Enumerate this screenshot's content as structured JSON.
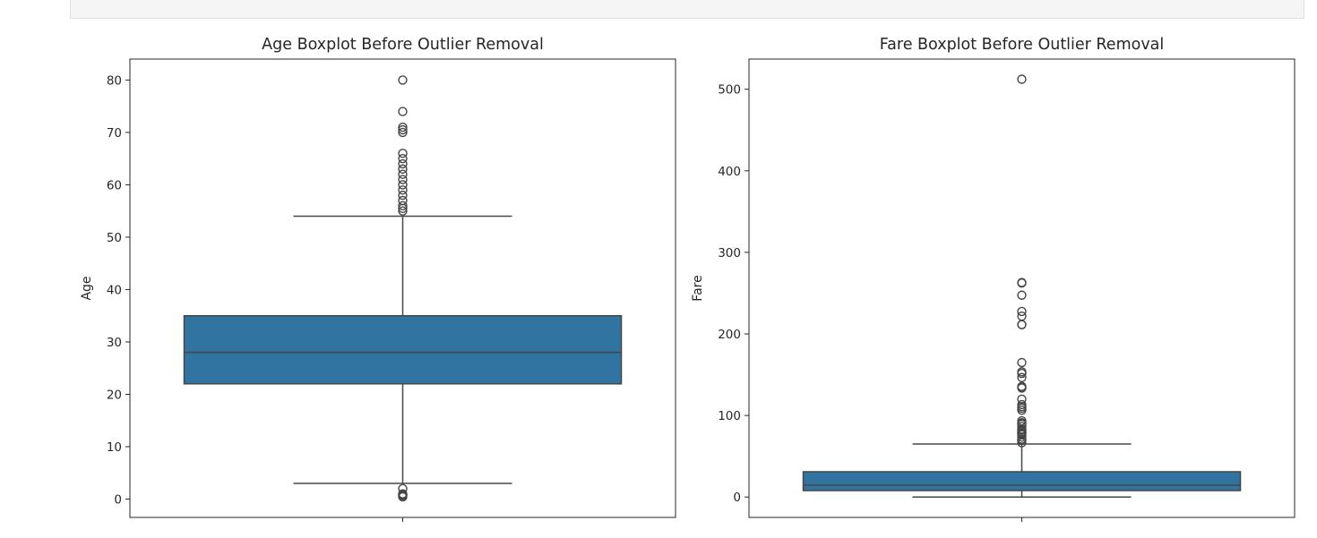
{
  "chart_data": [
    {
      "type": "boxplot",
      "title": "Age Boxplot Before Outlier Removal",
      "xlabel": "",
      "ylabel": "Age",
      "ylim": [
        -3.5,
        84
      ],
      "yticks": [
        0,
        10,
        20,
        30,
        40,
        50,
        60,
        70,
        80
      ],
      "box_color": "#3274a1",
      "line_color": "#464646",
      "grid": false,
      "box": {
        "whisker_low": 3,
        "q1": 22,
        "median": 28,
        "q3": 35,
        "whisker_high": 54
      },
      "outliers": [
        0.42,
        0.67,
        0.75,
        0.83,
        0.92,
        1,
        2,
        55,
        55.5,
        56,
        57,
        58,
        59,
        60,
        61,
        62,
        63,
        64,
        65,
        66,
        70,
        70.5,
        71,
        74,
        80
      ]
    },
    {
      "type": "boxplot",
      "title": "Fare Boxplot Before Outlier Removal",
      "xlabel": "",
      "ylabel": "Fare",
      "ylim": [
        -25,
        537
      ],
      "yticks": [
        0,
        100,
        200,
        300,
        400,
        500
      ],
      "box_color": "#3274a1",
      "line_color": "#464646",
      "grid": false,
      "box": {
        "whisker_low": 0,
        "q1": 7.91,
        "median": 14.45,
        "q3": 31,
        "whisker_high": 65
      },
      "outliers": [
        66.6,
        69.3,
        69.55,
        71,
        73.5,
        76.3,
        77,
        78.3,
        79.2,
        79.65,
        80,
        82.2,
        83.15,
        86.5,
        89.1,
        90,
        91.1,
        93.5,
        106.4,
        108.9,
        110.9,
        113.3,
        120,
        133.65,
        134.5,
        135.6,
        146.5,
        151.55,
        153.5,
        164.9,
        211.3,
        211.5,
        221.8,
        227.5,
        247.5,
        262.4,
        263,
        512.3
      ]
    }
  ]
}
